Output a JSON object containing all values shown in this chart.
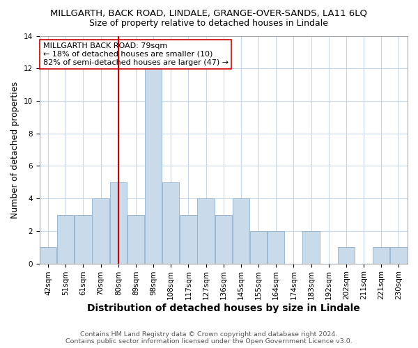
{
  "title": "MILLGARTH, BACK ROAD, LINDALE, GRANGE-OVER-SANDS, LA11 6LQ",
  "subtitle": "Size of property relative to detached houses in Lindale",
  "xlabel": "Distribution of detached houses by size in Lindale",
  "ylabel": "Number of detached properties",
  "bin_labels": [
    "42sqm",
    "51sqm",
    "61sqm",
    "70sqm",
    "80sqm",
    "89sqm",
    "98sqm",
    "108sqm",
    "117sqm",
    "127sqm",
    "136sqm",
    "145sqm",
    "155sqm",
    "164sqm",
    "174sqm",
    "183sqm",
    "192sqm",
    "202sqm",
    "211sqm",
    "221sqm",
    "230sqm"
  ],
  "counts": [
    1,
    3,
    3,
    4,
    5,
    3,
    12,
    5,
    3,
    4,
    3,
    4,
    2,
    2,
    0,
    2,
    0,
    1,
    0,
    1,
    1
  ],
  "bar_color": "#c9daea",
  "bar_edge_color": "#9ab8d0",
  "vline_x": 4,
  "vline_color": "#cc0000",
  "annotation_text": "MILLGARTH BACK ROAD: 79sqm\n← 18% of detached houses are smaller (10)\n82% of semi-detached houses are larger (47) →",
  "annotation_box_facecolor": "#ffffff",
  "annotation_box_edgecolor": "#cc0000",
  "ylim": [
    0,
    14
  ],
  "yticks": [
    0,
    2,
    4,
    6,
    8,
    10,
    12,
    14
  ],
  "footer1": "Contains HM Land Registry data © Crown copyright and database right 2024.",
  "footer2": "Contains public sector information licensed under the Open Government Licence v3.0.",
  "grid_color": "#c8d8e8",
  "title_fontsize": 9.5,
  "subtitle_fontsize": 9,
  "xlabel_fontsize": 10,
  "ylabel_fontsize": 9,
  "tick_fontsize": 7.5,
  "annotation_fontsize": 8,
  "footer_fontsize": 6.8
}
